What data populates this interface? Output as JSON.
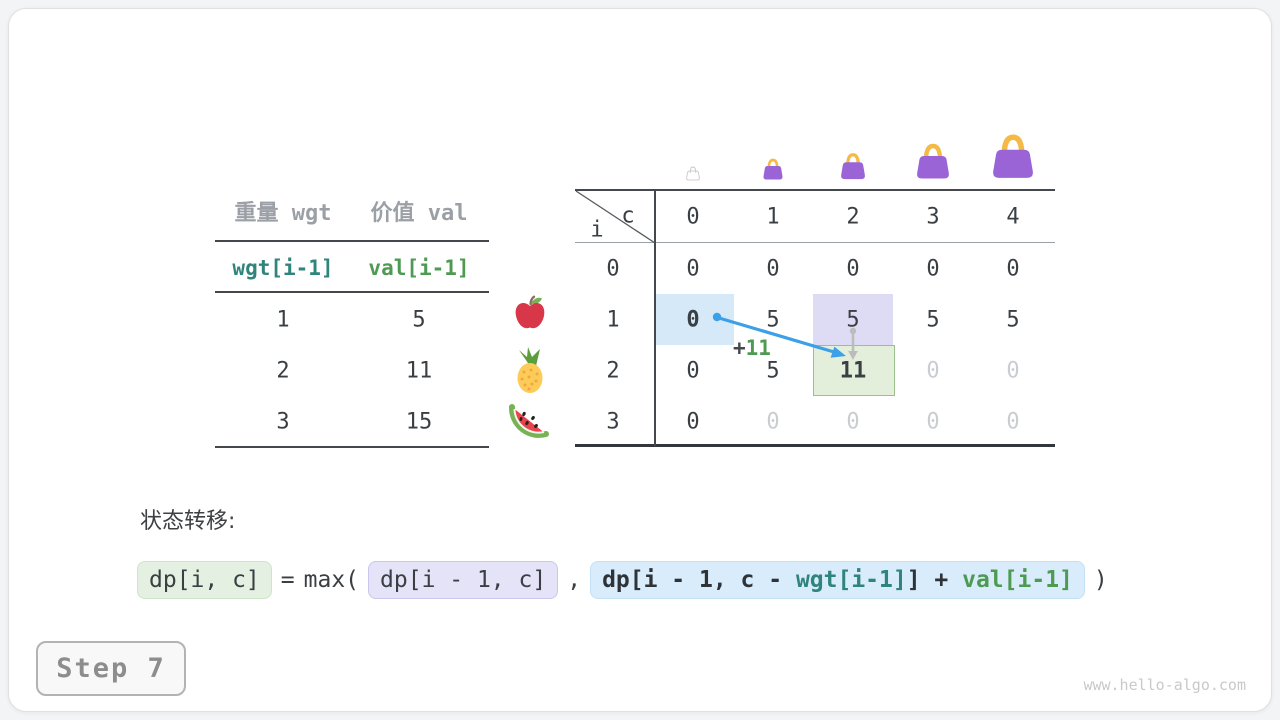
{
  "page": {
    "step_label": "Step 7",
    "watermark": "www.hello-algo.com"
  },
  "items_table": {
    "headers": [
      "重量 wgt",
      "价值 val"
    ],
    "index_row": [
      "wgt[i-1]",
      "val[i-1]"
    ],
    "rows": [
      {
        "wgt": "1",
        "val": "5",
        "fruit": "apple-icon"
      },
      {
        "wgt": "2",
        "val": "11",
        "fruit": "pineapple-icon"
      },
      {
        "wgt": "3",
        "val": "15",
        "fruit": "watermelon-icon"
      }
    ]
  },
  "dp_table": {
    "corner": {
      "col_var": "c",
      "row_var": "i"
    },
    "col_headers": [
      "0",
      "1",
      "2",
      "3",
      "4"
    ],
    "row_labels": [
      "0",
      "1",
      "2",
      "3"
    ],
    "capacity_icons": [
      "bag-outline-icon",
      "bag-small-icon",
      "bag-medium-icon",
      "bag-large-icon",
      "bag-xlarge-icon"
    ],
    "cells": [
      [
        {
          "v": "0"
        },
        {
          "v": "0"
        },
        {
          "v": "0"
        },
        {
          "v": "0"
        },
        {
          "v": "0"
        }
      ],
      [
        {
          "v": "0",
          "bold": true,
          "hl": "blue"
        },
        {
          "v": "5"
        },
        {
          "v": "5",
          "hl": "lavender"
        },
        {
          "v": "5"
        },
        {
          "v": "5"
        }
      ],
      [
        {
          "v": "0"
        },
        {
          "v": "5"
        },
        {
          "v": "11",
          "bold": true,
          "hl": "green"
        },
        {
          "v": "0",
          "dim": true
        },
        {
          "v": "0",
          "dim": true
        }
      ],
      [
        {
          "v": "0"
        },
        {
          "v": "0",
          "dim": true
        },
        {
          "v": "0",
          "dim": true
        },
        {
          "v": "0",
          "dim": true
        },
        {
          "v": "0",
          "dim": true
        }
      ]
    ]
  },
  "annotation": {
    "plus": "+",
    "value": "11"
  },
  "transition": {
    "label": "状态转移:",
    "lhs": "dp[i, c]",
    "eq": "=",
    "max_open": "max(",
    "arg1": "dp[i - 1, c]",
    "comma": ",",
    "arg2_prefix": "dp[i - 1, c - ",
    "arg2_wgt": "wgt[i-1]",
    "arg2_mid": "] + ",
    "arg2_val": "val[i-1]",
    "close": ")"
  },
  "colors": {
    "highlight_blue": "#d5e9f8",
    "highlight_lavender": "#dedcf4",
    "highlight_green": "#e4efdb",
    "highlight_green_border": "#9cbf8c",
    "arrow_blue": "#3ca0e8",
    "arrow_grey": "#bcbcbc",
    "teal": "#2f847c",
    "green": "#4f9a52",
    "bag_purple": "#9b64d6",
    "bag_handle_orange": "#f5b945",
    "dim_text": "#c9cdd1"
  }
}
